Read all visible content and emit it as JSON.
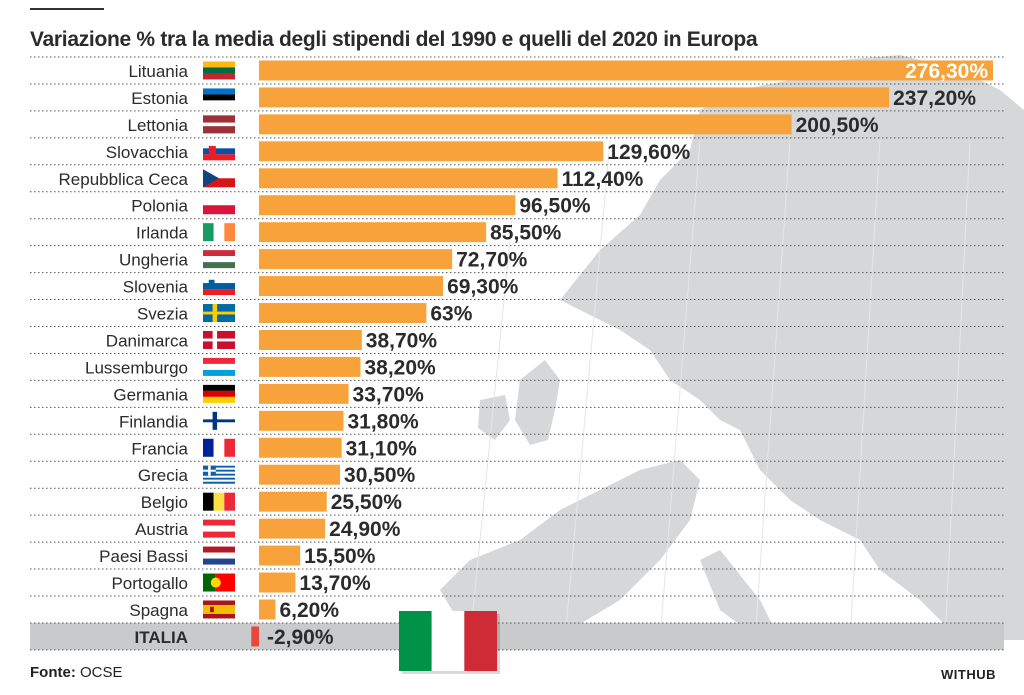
{
  "title": "Variazione % tra la media degli stipendi del 1990 e quelli del 2020 in Europa",
  "source_label": "Fonte:",
  "source_value": "OCSE",
  "brand": "WITHUB",
  "colors": {
    "bar": "#F7A23A",
    "negative_bar": "#E8473A",
    "highlight_row": "#C9CACC",
    "map": "#D6D7D9",
    "text": "#2b2b2b"
  },
  "chart_data": {
    "type": "bar",
    "orientation": "horizontal",
    "categories": [
      "Lituania",
      "Estonia",
      "Lettonia",
      "Slovacchia",
      "Repubblica Ceca",
      "Polonia",
      "Irlanda",
      "Ungheria",
      "Slovenia",
      "Svezia",
      "Danimarca",
      "Lussemburgo",
      "Germania",
      "Finlandia",
      "Francia",
      "Grecia",
      "Belgio",
      "Austria",
      "Paesi Bassi",
      "Portogallo",
      "Spagna",
      "ITALIA"
    ],
    "values": [
      276.3,
      237.2,
      200.5,
      129.6,
      112.4,
      96.5,
      85.5,
      72.7,
      69.3,
      63,
      38.7,
      38.2,
      33.7,
      31.8,
      31.1,
      30.5,
      25.5,
      24.9,
      15.5,
      13.7,
      6.2,
      -2.9
    ],
    "value_labels": [
      "276,30%",
      "237,20%",
      "200,50%",
      "129,60%",
      "112,40%",
      "96,50%",
      "85,50%",
      "72,70%",
      "69,30%",
      "63%",
      "38,70%",
      "38,20%",
      "33,70%",
      "31,80%",
      "31,10%",
      "30,50%",
      "25,50%",
      "24,90%",
      "15,50%",
      "13,70%",
      "6,20%",
      "-2,90%"
    ],
    "flags": [
      "lithuania-flag",
      "estonia-flag",
      "latvia-flag",
      "slovakia-flag",
      "czech-flag",
      "poland-flag",
      "ireland-flag",
      "hungary-flag",
      "slovenia-flag",
      "sweden-flag",
      "denmark-flag",
      "luxembourg-flag",
      "germany-flag",
      "finland-flag",
      "france-flag",
      "greece-flag",
      "belgium-flag",
      "austria-flag",
      "netherlands-flag",
      "portugal-flag",
      "spain-flag",
      "italy-flag"
    ],
    "highlight": "ITALIA",
    "xlim": [
      0,
      276.3
    ],
    "grid": false
  }
}
